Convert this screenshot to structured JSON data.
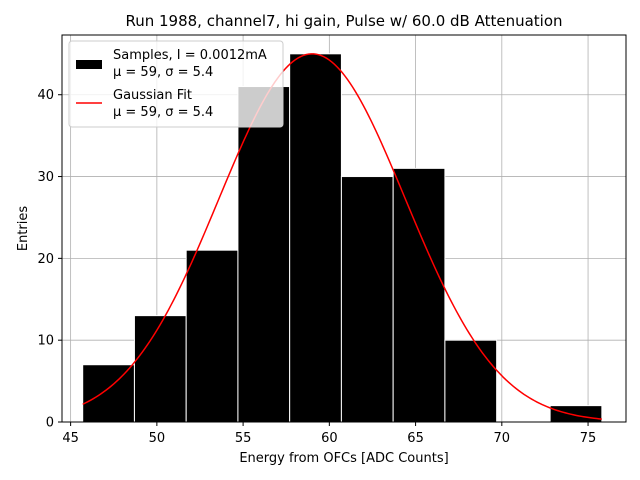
{
  "chart_data": {
    "type": "bar",
    "title": "Run 1988, channel7, hi gain, Pulse w/ 60.0 dB Attenuation",
    "xlabel": "Energy from OFCs [ADC Counts]",
    "ylabel": "Entries",
    "xlim": [
      44.5,
      77.2
    ],
    "ylim": [
      0,
      47.3
    ],
    "xticks": [
      45,
      50,
      55,
      60,
      65,
      70,
      75
    ],
    "yticks": [
      0,
      10,
      20,
      30,
      40
    ],
    "grid": true,
    "histogram": {
      "name": "Samples, I = 0.0012mA",
      "stats": "μ = 59, σ = 5.4",
      "bin_edges": [
        45.7,
        48.7,
        51.7,
        54.7,
        57.7,
        60.7,
        63.7,
        66.7,
        69.7,
        72.8,
        75.8
      ],
      "counts": [
        7,
        13,
        21,
        41,
        45,
        30,
        31,
        10,
        0,
        2
      ],
      "color": "#000000"
    },
    "fit": {
      "name": "Gaussian Fit",
      "stats": "μ = 59, σ = 5.4",
      "mu": 59,
      "sigma": 5.4,
      "amplitude": 45,
      "x_range": [
        45.7,
        75.8
      ],
      "color": "#ff0000"
    },
    "legend_position": "upper-left"
  }
}
